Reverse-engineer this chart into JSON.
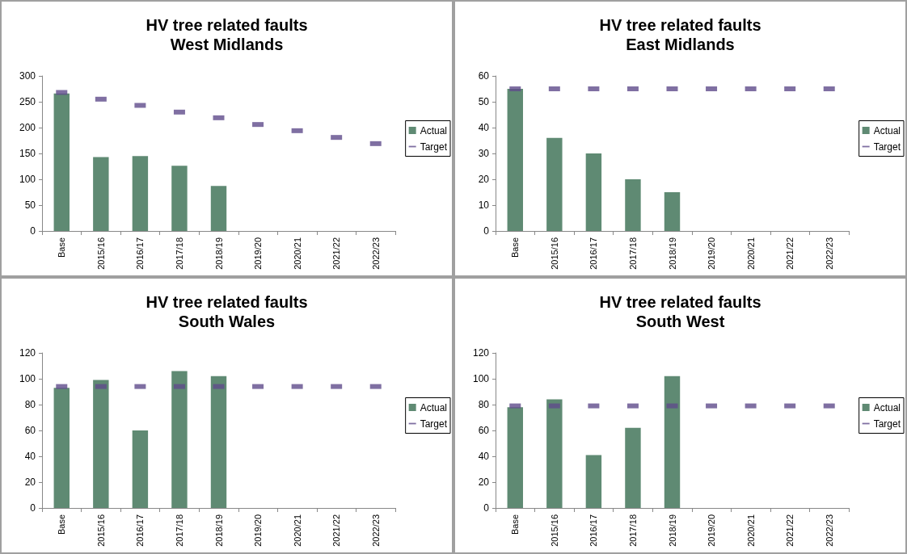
{
  "chart_data": [
    {
      "type": "bar",
      "title": "HV tree related faults\nWest Midlands",
      "categories": [
        "Base",
        "2015/16",
        "2016/17",
        "2017/18",
        "2018/19",
        "2019/20",
        "2020/21",
        "2021/22",
        "2022/23"
      ],
      "series": [
        {
          "name": "Actual",
          "type": "bar",
          "color": "#5f8a73",
          "values": [
            266,
            143,
            145,
            126,
            87,
            null,
            null,
            null,
            null
          ]
        },
        {
          "name": "Target",
          "type": "scatter",
          "color": "#5f4b8b",
          "values": [
            268,
            255,
            243,
            230,
            219,
            206,
            194,
            181,
            169
          ]
        }
      ],
      "ylim": [
        0,
        300
      ],
      "yticks": [
        0,
        50,
        100,
        150,
        200,
        250,
        300
      ],
      "grid": false,
      "legend": "right"
    },
    {
      "type": "bar",
      "title": "HV tree related faults\nEast Midlands",
      "categories": [
        "Base",
        "2015/16",
        "2016/17",
        "2017/18",
        "2018/19",
        "2019/20",
        "2020/21",
        "2021/22",
        "2022/23"
      ],
      "series": [
        {
          "name": "Actual",
          "type": "bar",
          "color": "#5f8a73",
          "values": [
            55,
            36,
            30,
            20,
            15,
            null,
            null,
            null,
            null
          ]
        },
        {
          "name": "Target",
          "type": "scatter",
          "color": "#5f4b8b",
          "values": [
            55,
            55,
            55,
            55,
            55,
            55,
            55,
            55,
            55
          ]
        }
      ],
      "ylim": [
        0,
        60
      ],
      "yticks": [
        0,
        10,
        20,
        30,
        40,
        50,
        60
      ],
      "grid": false,
      "legend": "right"
    },
    {
      "type": "bar",
      "title": "HV tree related faults\nSouth Wales",
      "categories": [
        "Base",
        "2015/16",
        "2016/17",
        "2017/18",
        "2018/19",
        "2019/20",
        "2020/21",
        "2021/22",
        "2022/23"
      ],
      "series": [
        {
          "name": "Actual",
          "type": "bar",
          "color": "#5f8a73",
          "values": [
            93,
            99,
            60,
            106,
            102,
            null,
            null,
            null,
            null
          ]
        },
        {
          "name": "Target",
          "type": "scatter",
          "color": "#5f4b8b",
          "values": [
            94,
            94,
            94,
            94,
            94,
            94,
            94,
            94,
            94
          ]
        }
      ],
      "ylim": [
        0,
        120
      ],
      "yticks": [
        0,
        20,
        40,
        60,
        80,
        100,
        120
      ],
      "grid": false,
      "legend": "right"
    },
    {
      "type": "bar",
      "title": "HV tree related faults\nSouth West",
      "categories": [
        "Base",
        "2015/16",
        "2016/17",
        "2017/18",
        "2018/19",
        "2019/20",
        "2020/21",
        "2021/22",
        "2022/23"
      ],
      "series": [
        {
          "name": "Actual",
          "type": "bar",
          "color": "#5f8a73",
          "values": [
            78,
            84,
            41,
            62,
            102,
            null,
            null,
            null,
            null
          ]
        },
        {
          "name": "Target",
          "type": "scatter",
          "color": "#5f4b8b",
          "values": [
            79,
            79,
            79,
            79,
            79,
            79,
            79,
            79,
            79
          ]
        }
      ],
      "ylim": [
        0,
        120
      ],
      "yticks": [
        0,
        20,
        40,
        60,
        80,
        100,
        120
      ],
      "grid": false,
      "legend": "right"
    }
  ]
}
